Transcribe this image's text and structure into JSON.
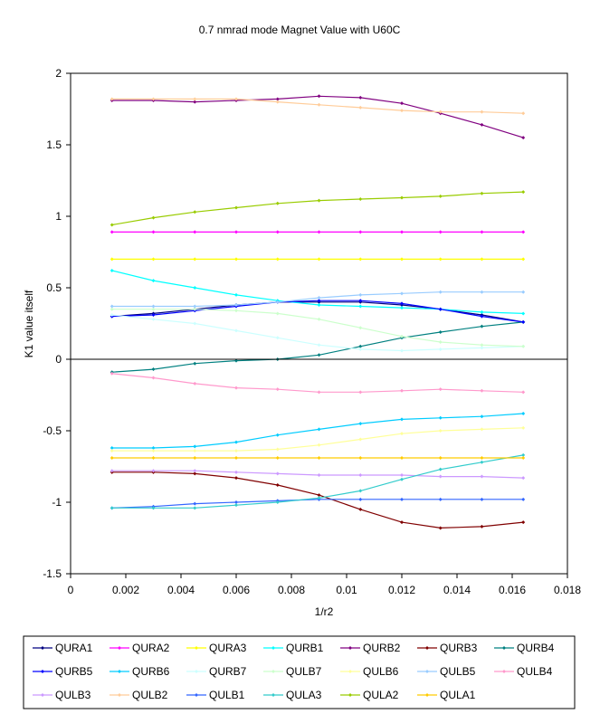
{
  "chart_data": {
    "type": "line",
    "title": "0.7 nmrad mode Magnet Value with U60C",
    "xlabel": "1/r2",
    "ylabel": "K1 value itself",
    "xlim": [
      0,
      0.018
    ],
    "ylim": [
      -1.5,
      2
    ],
    "x_ticks": [
      "0",
      "0.002",
      "0.004",
      "0.006",
      "0.008",
      "0.01",
      "0.012",
      "0.014",
      "0.016",
      "0.018"
    ],
    "y_ticks": [
      "2",
      "1.5",
      "1",
      "0.5",
      "0",
      "-0.5",
      "-1",
      "-1.5"
    ],
    "grid": false,
    "legend_position": "bottom",
    "x": [
      0.0015,
      0.003,
      0.0045,
      0.006,
      0.0075,
      0.009,
      0.0105,
      0.012,
      0.0134,
      0.0149,
      0.0164
    ],
    "series": [
      {
        "name": "QURA1",
        "color": "#000080",
        "values": [
          0.3,
          0.32,
          0.35,
          0.38,
          0.4,
          0.4,
          0.4,
          0.38,
          0.35,
          0.31,
          0.26
        ]
      },
      {
        "name": "QURA2",
        "color": "#FF00FF",
        "values": [
          0.89,
          0.89,
          0.89,
          0.89,
          0.89,
          0.89,
          0.89,
          0.89,
          0.89,
          0.89,
          0.89
        ]
      },
      {
        "name": "QURA3",
        "color": "#FFFF00",
        "values": [
          0.7,
          0.7,
          0.7,
          0.7,
          0.7,
          0.7,
          0.7,
          0.7,
          0.7,
          0.7,
          0.7
        ]
      },
      {
        "name": "QURB1",
        "color": "#00FFFF",
        "values": [
          0.62,
          0.55,
          0.5,
          0.45,
          0.41,
          0.38,
          0.37,
          0.36,
          0.35,
          0.33,
          0.32
        ]
      },
      {
        "name": "QURB2",
        "color": "#800080",
        "values": [
          1.81,
          1.81,
          1.8,
          1.81,
          1.82,
          1.84,
          1.83,
          1.79,
          1.72,
          1.64,
          1.55
        ]
      },
      {
        "name": "QURB3",
        "color": "#800000",
        "values": [
          -0.79,
          -0.79,
          -0.8,
          -0.83,
          -0.88,
          -0.95,
          -1.05,
          -1.14,
          -1.18,
          -1.17,
          -1.14
        ]
      },
      {
        "name": "QURB4",
        "color": "#008080",
        "values": [
          -0.09,
          -0.07,
          -0.03,
          -0.01,
          0.0,
          0.03,
          0.09,
          0.15,
          0.19,
          0.23,
          0.26
        ]
      },
      {
        "name": "QURB5",
        "color": "#0000FF",
        "values": [
          0.3,
          0.31,
          0.34,
          0.37,
          0.4,
          0.41,
          0.41,
          0.39,
          0.35,
          0.3,
          0.26
        ]
      },
      {
        "name": "QURB6",
        "color": "#00CCFF",
        "values": [
          -0.62,
          -0.62,
          -0.61,
          -0.58,
          -0.53,
          -0.49,
          -0.45,
          -0.42,
          -0.41,
          -0.4,
          -0.38
        ]
      },
      {
        "name": "QURB7",
        "color": "#CCFFFF",
        "values": [
          0.31,
          0.28,
          0.25,
          0.2,
          0.15,
          0.1,
          0.07,
          0.06,
          0.07,
          0.08,
          0.09
        ]
      },
      {
        "name": "QULB7",
        "color": "#CCFFCC",
        "values": [
          0.35,
          0.35,
          0.35,
          0.34,
          0.32,
          0.28,
          0.22,
          0.16,
          0.12,
          0.1,
          0.09
        ]
      },
      {
        "name": "QULB6",
        "color": "#FFFF99",
        "values": [
          -0.64,
          -0.64,
          -0.64,
          -0.64,
          -0.63,
          -0.6,
          -0.56,
          -0.52,
          -0.5,
          -0.49,
          -0.48
        ]
      },
      {
        "name": "QULB5",
        "color": "#99CCFF",
        "values": [
          0.37,
          0.37,
          0.37,
          0.38,
          0.4,
          0.43,
          0.45,
          0.46,
          0.47,
          0.47,
          0.47
        ]
      },
      {
        "name": "QULB4",
        "color": "#FF99CC",
        "values": [
          -0.1,
          -0.13,
          -0.17,
          -0.2,
          -0.21,
          -0.23,
          -0.23,
          -0.22,
          -0.21,
          -0.22,
          -0.23
        ]
      },
      {
        "name": "QULB3",
        "color": "#CC99FF",
        "values": [
          -0.78,
          -0.78,
          -0.78,
          -0.79,
          -0.8,
          -0.81,
          -0.81,
          -0.81,
          -0.82,
          -0.82,
          -0.83
        ]
      },
      {
        "name": "QULB2",
        "color": "#FFCC99",
        "values": [
          1.82,
          1.82,
          1.82,
          1.82,
          1.8,
          1.78,
          1.76,
          1.74,
          1.73,
          1.73,
          1.72
        ]
      },
      {
        "name": "QULB1",
        "color": "#3366FF",
        "values": [
          -1.04,
          -1.03,
          -1.01,
          -1.0,
          -0.99,
          -0.98,
          -0.98,
          -0.98,
          -0.98,
          -0.98,
          -0.98
        ]
      },
      {
        "name": "QULA3",
        "color": "#33CCCC",
        "values": [
          -1.04,
          -1.04,
          -1.04,
          -1.02,
          -1.0,
          -0.97,
          -0.92,
          -0.84,
          -0.77,
          -0.72,
          -0.67
        ]
      },
      {
        "name": "QULA2",
        "color": "#99CC00",
        "values": [
          0.94,
          0.99,
          1.03,
          1.06,
          1.09,
          1.11,
          1.12,
          1.13,
          1.14,
          1.16,
          1.17
        ]
      },
      {
        "name": "QULA1",
        "color": "#FFCC00",
        "values": [
          -0.69,
          -0.69,
          -0.69,
          -0.69,
          -0.69,
          -0.69,
          -0.69,
          -0.69,
          -0.69,
          -0.69,
          -0.69
        ]
      }
    ]
  }
}
